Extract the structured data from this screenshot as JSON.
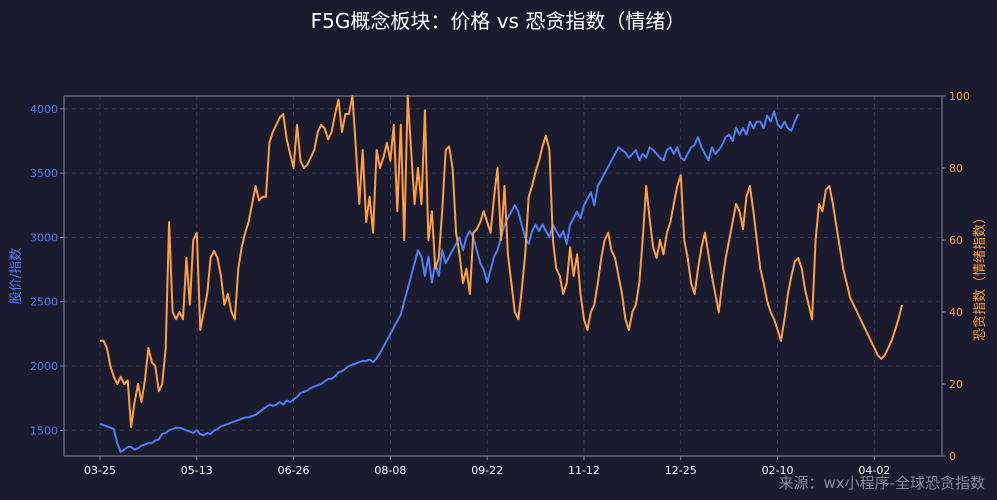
{
  "colors": {
    "background": "#1a1b2e",
    "price": "#4e7ff0",
    "sentiment": "#ff9f40",
    "axis": "#8a8a9a",
    "text": "#ffffff",
    "grid": "#3a3c52"
  },
  "chart_data": {
    "type": "line",
    "title": "F5G概念板块：价格 vs 恐贪指数（情绪）",
    "ylabel_left": "股价/指数",
    "ylabel_right": "恐贪指数（情绪指数）",
    "watermark": "来源：wx小程序-全球恐贪指数",
    "x_ticks": [
      "03-25",
      "05-13",
      "06-26",
      "08-08",
      "09-22",
      "11-12",
      "12-25",
      "02-10",
      "04-02"
    ],
    "x_tick_index": [
      0,
      28,
      56,
      84,
      112,
      140,
      168,
      196,
      224
    ],
    "ylim_left": [
      1300,
      4100
    ],
    "ylim_right": [
      0,
      100
    ],
    "y_ticks_left": [
      1500,
      2000,
      2500,
      3000,
      3500,
      4000
    ],
    "y_ticks_right": [
      0,
      20,
      40,
      60,
      80,
      100
    ],
    "grid": true,
    "series": [
      {
        "axis": "left",
        "values": [
          1550,
          1540,
          1530,
          1520,
          1510,
          1400,
          1330,
          1350,
          1370,
          1370,
          1350,
          1360,
          1380,
          1390,
          1400,
          1400,
          1420,
          1430,
          1470,
          1480,
          1500,
          1510,
          1520,
          1520,
          1510,
          1500,
          1490,
          1480,
          1500,
          1470,
          1460,
          1480,
          1470,
          1500,
          1510,
          1530,
          1540,
          1550,
          1560,
          1570,
          1580,
          1590,
          1600,
          1600,
          1610,
          1620,
          1640,
          1660,
          1680,
          1700,
          1690,
          1700,
          1720,
          1700,
          1730,
          1720,
          1740,
          1760,
          1790,
          1800,
          1810,
          1830,
          1840,
          1850,
          1860,
          1880,
          1900,
          1900,
          1920,
          1950,
          1960,
          1980,
          2000,
          2010,
          2020,
          2030,
          2040,
          2040,
          2050,
          2030,
          2060,
          2100,
          2150,
          2200,
          2250,
          2300,
          2350,
          2400,
          2500,
          2600,
          2700,
          2800,
          2900,
          2850,
          2700,
          2850,
          2650,
          2800,
          2700,
          2900,
          2800,
          2850,
          2900,
          2950,
          3000,
          2900,
          3000,
          3050,
          3000,
          2900,
          2800,
          2750,
          2650,
          2750,
          2850,
          2900,
          3000,
          3100,
          3150,
          3200,
          3250,
          3200,
          3100,
          3000,
          2950,
          3050,
          3100,
          3050,
          3100,
          3050,
          3000,
          3100,
          3050,
          3000,
          3050,
          2950,
          3100,
          3150,
          3200,
          3150,
          3250,
          3300,
          3350,
          3250,
          3400,
          3450,
          3500,
          3550,
          3600,
          3650,
          3700,
          3680,
          3660,
          3620,
          3650,
          3680,
          3600,
          3650,
          3620,
          3700,
          3680,
          3650,
          3620,
          3600,
          3680,
          3700,
          3650,
          3700,
          3620,
          3600,
          3650,
          3700,
          3720,
          3780,
          3700,
          3650,
          3600,
          3700,
          3650,
          3680,
          3720,
          3780,
          3800,
          3750,
          3850,
          3800,
          3850,
          3800,
          3900,
          3850,
          3900,
          3900,
          3850,
          3950,
          3900,
          3980,
          3880,
          3850,
          3900,
          3850,
          3830,
          3900,
          3960
        ],
        "start_index": 0
      },
      {
        "axis": "right",
        "values": [
          32,
          32,
          30,
          25,
          22,
          20,
          22,
          20,
          21,
          8,
          15,
          20,
          15,
          21,
          30,
          26,
          25,
          18,
          20,
          30,
          65,
          40,
          38,
          40,
          38,
          55,
          42,
          60,
          62,
          35,
          40,
          45,
          55,
          57,
          55,
          50,
          42,
          45,
          40,
          38,
          52,
          58,
          62,
          65,
          70,
          75,
          71,
          72,
          72,
          87,
          90,
          92,
          94,
          95,
          88,
          84,
          80,
          92,
          82,
          80,
          81,
          83,
          85,
          90,
          92,
          91,
          88,
          90,
          95,
          99,
          90,
          95,
          95,
          100,
          86,
          70,
          85,
          65,
          72,
          62,
          85,
          80,
          83,
          87,
          82,
          92,
          68,
          92,
          60,
          100,
          85,
          70,
          80,
          70,
          96,
          60,
          68,
          52,
          55,
          68,
          85,
          86,
          80,
          62,
          56,
          48,
          52,
          45,
          62,
          63,
          65,
          68,
          65,
          62,
          72,
          80,
          60,
          75,
          56,
          48,
          40,
          38,
          46,
          56,
          72,
          75,
          79,
          82,
          86,
          89,
          85,
          60,
          52,
          50,
          45,
          48,
          58,
          50,
          56,
          45,
          38,
          35,
          40,
          42,
          48,
          55,
          60,
          62,
          57,
          55,
          50,
          45,
          38,
          35,
          40,
          42,
          48,
          60,
          75,
          66,
          58,
          55,
          60,
          56,
          62,
          65,
          70,
          75,
          78,
          60,
          55,
          48,
          45,
          52,
          58,
          62,
          56,
          50,
          45,
          40,
          48,
          55,
          60,
          65,
          70,
          68,
          63,
          72,
          75,
          68,
          60,
          52,
          48,
          43,
          40,
          38,
          35,
          32,
          38,
          45,
          50,
          54,
          55,
          52,
          46,
          42,
          38,
          60,
          70,
          68,
          74,
          75,
          70,
          64,
          58,
          52,
          48,
          44,
          42,
          40,
          38,
          36,
          34,
          32,
          30,
          28,
          27,
          28,
          30,
          32,
          35,
          38,
          42
        ],
        "start_index": 0
      }
    ]
  }
}
